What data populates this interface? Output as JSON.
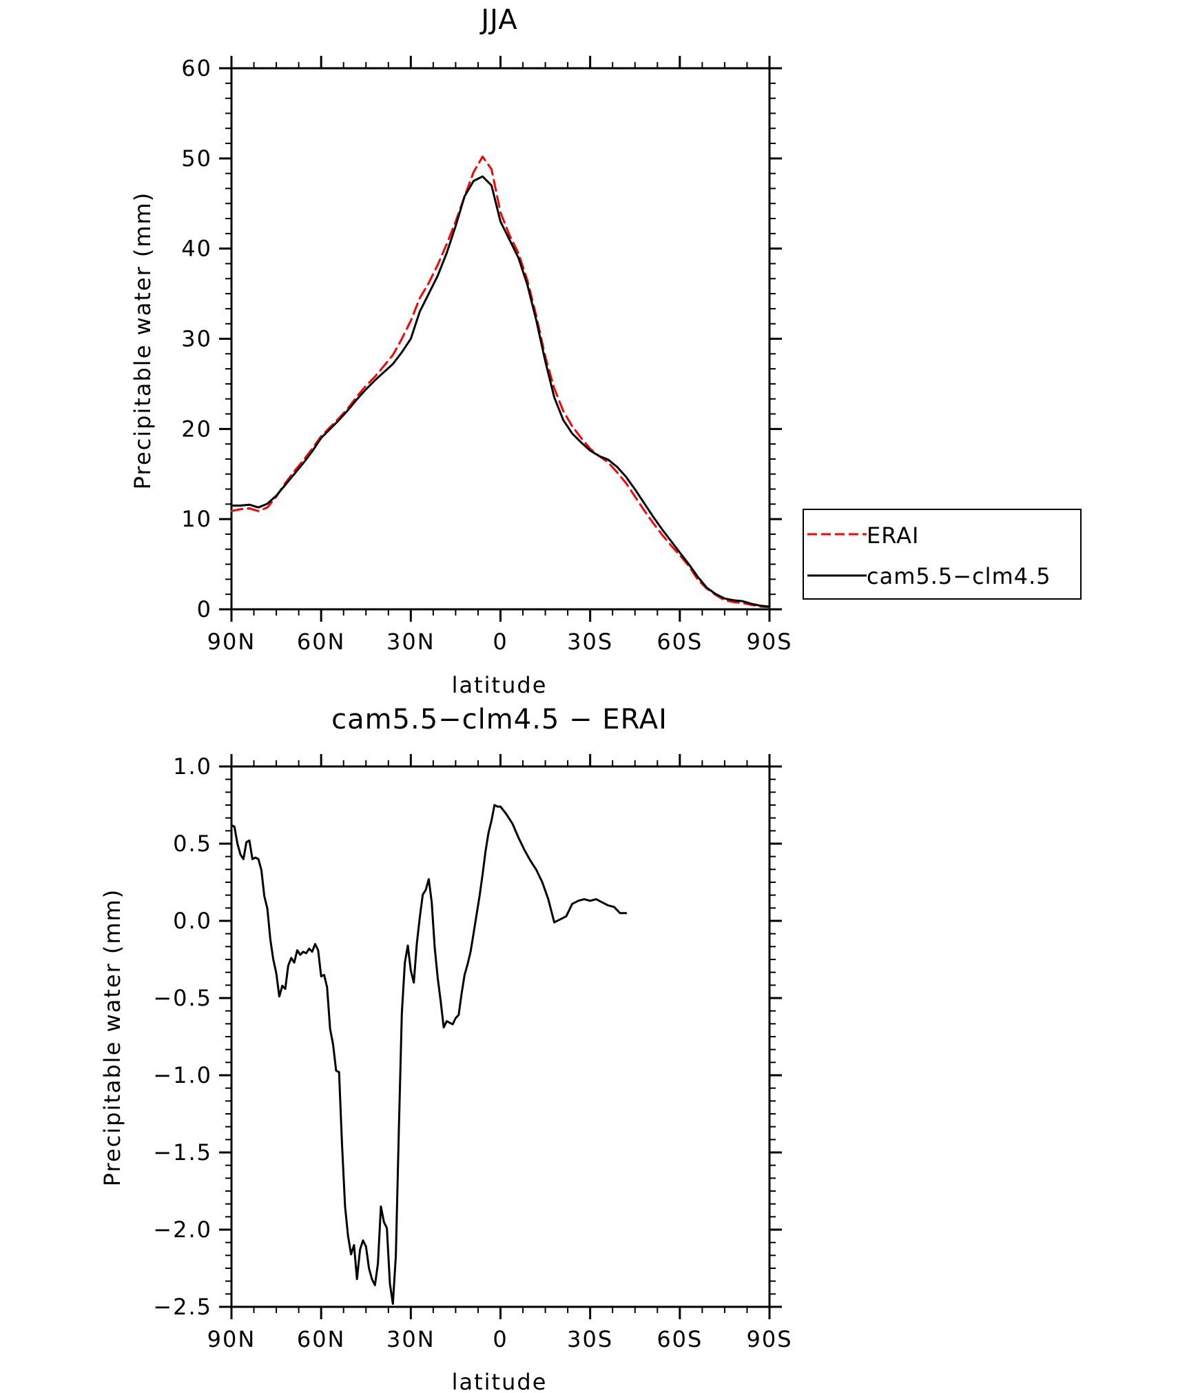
{
  "chart_data": [
    {
      "type": "line",
      "title": "JJA",
      "xlabel": "latitude",
      "ylabel": "Precipitable water (mm)",
      "xlim": [
        90,
        -90
      ],
      "ylim": [
        0,
        60
      ],
      "xticks": [
        {
          "v": 90,
          "label": "90N"
        },
        {
          "v": 60,
          "label": "60N"
        },
        {
          "v": 30,
          "label": "30N"
        },
        {
          "v": 0,
          "label": "0"
        },
        {
          "v": -30,
          "label": "30S"
        },
        {
          "v": -60,
          "label": "60S"
        },
        {
          "v": -90,
          "label": "90S"
        }
      ],
      "yticks": [
        {
          "v": 0,
          "label": "0"
        },
        {
          "v": 10,
          "label": "10"
        },
        {
          "v": 20,
          "label": "20"
        },
        {
          "v": 30,
          "label": "30"
        },
        {
          "v": 40,
          "label": "40"
        },
        {
          "v": 50,
          "label": "50"
        },
        {
          "v": 60,
          "label": "60"
        }
      ],
      "grid": false,
      "legend_position": "outside-right",
      "series": [
        {
          "name": "ERAI",
          "color": "#ff0000",
          "dash": "dashed",
          "points": [
            [
              90,
              10.9
            ],
            [
              87,
              11.1
            ],
            [
              84,
              11.2
            ],
            [
              81,
              10.9
            ],
            [
              78,
              11.3
            ],
            [
              75,
              12.5
            ],
            [
              72,
              14.0
            ],
            [
              69,
              15.3
            ],
            [
              66,
              16.5
            ],
            [
              63,
              17.8
            ],
            [
              60,
              19.2
            ],
            [
              57,
              20.2
            ],
            [
              54,
              21.2
            ],
            [
              51,
              22.3
            ],
            [
              48,
              23.6
            ],
            [
              45,
              24.8
            ],
            [
              42,
              25.8
            ],
            [
              39,
              27.0
            ],
            [
              36,
              28.2
            ],
            [
              33,
              30.0
            ],
            [
              30,
              32.0
            ],
            [
              27,
              34.5
            ],
            [
              24,
              36.2
            ],
            [
              21,
              38.2
            ],
            [
              18,
              40.5
            ],
            [
              15,
              43.0
            ],
            [
              12,
              45.8
            ],
            [
              9,
              48.5
            ],
            [
              6,
              50.2
            ],
            [
              3,
              48.8
            ],
            [
              0,
              44.0
            ],
            [
              -3,
              41.5
            ],
            [
              -6,
              39.5
            ],
            [
              -9,
              36.5
            ],
            [
              -12,
              32.5
            ],
            [
              -15,
              28.0
            ],
            [
              -18,
              24.5
            ],
            [
              -21,
              22.0
            ],
            [
              -24,
              20.3
            ],
            [
              -27,
              19.0
            ],
            [
              -30,
              17.8
            ],
            [
              -33,
              17.0
            ],
            [
              -36,
              16.3
            ],
            [
              -39,
              15.2
            ],
            [
              -42,
              14.0
            ],
            [
              -45,
              12.5
            ],
            [
              -48,
              11.0
            ],
            [
              -51,
              9.6
            ],
            [
              -54,
              8.3
            ],
            [
              -57,
              7.1
            ],
            [
              -60,
              6.0
            ],
            [
              -63,
              4.8
            ],
            [
              -66,
              3.3
            ],
            [
              -69,
              2.3
            ],
            [
              -72,
              1.6
            ],
            [
              -75,
              1.0
            ],
            [
              -78,
              0.8
            ],
            [
              -81,
              0.7
            ],
            [
              -84,
              0.5
            ],
            [
              -87,
              0.3
            ],
            [
              -90,
              0.25
            ]
          ]
        },
        {
          "name": "cam5.5−clm4.5",
          "color": "#000000",
          "dash": "solid",
          "points": [
            [
              90,
              11.5
            ],
            [
              87,
              11.5
            ],
            [
              84,
              11.6
            ],
            [
              81,
              11.3
            ],
            [
              78,
              11.7
            ],
            [
              75,
              12.6
            ],
            [
              72,
              13.8
            ],
            [
              69,
              15.0
            ],
            [
              66,
              16.2
            ],
            [
              63,
              17.5
            ],
            [
              60,
              19.0
            ],
            [
              57,
              20.0
            ],
            [
              54,
              21.0
            ],
            [
              51,
              22.1
            ],
            [
              48,
              23.3
            ],
            [
              45,
              24.4
            ],
            [
              42,
              25.4
            ],
            [
              39,
              26.3
            ],
            [
              36,
              27.2
            ],
            [
              33,
              28.5
            ],
            [
              30,
              30.0
            ],
            [
              27,
              33.0
            ],
            [
              24,
              35.0
            ],
            [
              21,
              37.0
            ],
            [
              18,
              39.5
            ],
            [
              15,
              42.5
            ],
            [
              12,
              45.8
            ],
            [
              9,
              47.5
            ],
            [
              6,
              48.0
            ],
            [
              3,
              47.0
            ],
            [
              0,
              43.0
            ],
            [
              -3,
              41.0
            ],
            [
              -6,
              39.0
            ],
            [
              -9,
              36.0
            ],
            [
              -12,
              32.0
            ],
            [
              -15,
              27.5
            ],
            [
              -18,
              23.5
            ],
            [
              -21,
              21.0
            ],
            [
              -24,
              19.5
            ],
            [
              -27,
              18.5
            ],
            [
              -30,
              17.6
            ],
            [
              -33,
              17.0
            ],
            [
              -36,
              16.6
            ],
            [
              -39,
              15.8
            ],
            [
              -42,
              14.7
            ],
            [
              -45,
              13.3
            ],
            [
              -48,
              11.8
            ],
            [
              -51,
              10.3
            ],
            [
              -54,
              8.9
            ],
            [
              -57,
              7.6
            ],
            [
              -60,
              6.3
            ],
            [
              -63,
              5.0
            ],
            [
              -66,
              3.6
            ],
            [
              -69,
              2.4
            ],
            [
              -72,
              1.7
            ],
            [
              -75,
              1.2
            ],
            [
              -78,
              1.0
            ],
            [
              -81,
              0.9
            ],
            [
              -84,
              0.6
            ],
            [
              -87,
              0.4
            ],
            [
              -90,
              0.3
            ]
          ]
        }
      ]
    },
    {
      "type": "line",
      "title": "cam5.5−clm4.5 − ERAI",
      "xlabel": "latitude",
      "ylabel": "Precipitable water (mm)",
      "xlim": [
        90,
        -90
      ],
      "ylim": [
        -2.5,
        1.0
      ],
      "xticks": [
        {
          "v": 90,
          "label": "90N"
        },
        {
          "v": 60,
          "label": "60N"
        },
        {
          "v": 30,
          "label": "30N"
        },
        {
          "v": 0,
          "label": "0"
        },
        {
          "v": -30,
          "label": "30S"
        },
        {
          "v": -60,
          "label": "60S"
        },
        {
          "v": -90,
          "label": "90S"
        }
      ],
      "yticks": [
        {
          "v": -2.5,
          "label": "−2.5"
        },
        {
          "v": -2.0,
          "label": "−2.0"
        },
        {
          "v": -1.5,
          "label": "−1.5"
        },
        {
          "v": -1.0,
          "label": "−1.0"
        },
        {
          "v": -0.5,
          "label": "−0.5"
        },
        {
          "v": 0.0,
          "label": "0.0"
        },
        {
          "v": 0.5,
          "label": "0.5"
        },
        {
          "v": 1.0,
          "label": "1.0"
        }
      ],
      "grid": false,
      "series": [
        {
          "color": "#000000",
          "dash": "solid",
          "points": [
            [
              90,
              0.62
            ],
            [
              89,
              0.61
            ],
            [
              88,
              0.5
            ],
            [
              87,
              0.43
            ],
            [
              86,
              0.4
            ],
            [
              85,
              0.51
            ],
            [
              84,
              0.52
            ],
            [
              83,
              0.4
            ],
            [
              82,
              0.41
            ],
            [
              81,
              0.4
            ],
            [
              80,
              0.33
            ],
            [
              79,
              0.16
            ],
            [
              78,
              0.08
            ],
            [
              77,
              -0.12
            ],
            [
              76,
              -0.25
            ],
            [
              75,
              -0.34
            ],
            [
              74,
              -0.49
            ],
            [
              73,
              -0.42
            ],
            [
              72,
              -0.44
            ],
            [
              71,
              -0.29
            ],
            [
              70,
              -0.24
            ],
            [
              69,
              -0.27
            ],
            [
              68,
              -0.19
            ],
            [
              67,
              -0.22
            ],
            [
              66,
              -0.2
            ],
            [
              65,
              -0.21
            ],
            [
              64,
              -0.18
            ],
            [
              63,
              -0.2
            ],
            [
              62,
              -0.15
            ],
            [
              61,
              -0.19
            ],
            [
              60,
              -0.36
            ],
            [
              59,
              -0.35
            ],
            [
              58,
              -0.43
            ],
            [
              57,
              -0.7
            ],
            [
              56,
              -0.8
            ],
            [
              55,
              -0.97
            ],
            [
              54,
              -0.98
            ],
            [
              53,
              -1.45
            ],
            [
              52,
              -1.85
            ],
            [
              51,
              -2.04
            ],
            [
              50,
              -2.16
            ],
            [
              49,
              -2.1
            ],
            [
              48,
              -2.32
            ],
            [
              47,
              -2.13
            ],
            [
              46,
              -2.07
            ],
            [
              45,
              -2.11
            ],
            [
              44,
              -2.25
            ],
            [
              43,
              -2.32
            ],
            [
              42,
              -2.36
            ],
            [
              41,
              -2.22
            ],
            [
              40,
              -1.85
            ],
            [
              39,
              -1.95
            ],
            [
              38,
              -1.99
            ],
            [
              37,
              -2.35
            ],
            [
              36,
              -2.48
            ],
            [
              35,
              -2.17
            ],
            [
              34,
              -1.35
            ],
            [
              33,
              -0.6
            ],
            [
              32,
              -0.27
            ],
            [
              31,
              -0.16
            ],
            [
              30,
              -0.32
            ],
            [
              29,
              -0.4
            ],
            [
              28,
              -0.15
            ],
            [
              27,
              0.02
            ],
            [
              26,
              0.17
            ],
            [
              25,
              0.2
            ],
            [
              24,
              0.27
            ],
            [
              23,
              0.12
            ],
            [
              22,
              -0.17
            ],
            [
              21,
              -0.37
            ],
            [
              20,
              -0.52
            ],
            [
              19,
              -0.69
            ],
            [
              18,
              -0.65
            ],
            [
              17,
              -0.66
            ],
            [
              16,
              -0.67
            ],
            [
              15,
              -0.63
            ],
            [
              14,
              -0.61
            ],
            [
              13,
              -0.47
            ],
            [
              12,
              -0.35
            ],
            [
              11,
              -0.28
            ],
            [
              10,
              -0.2
            ],
            [
              9,
              -0.08
            ],
            [
              8,
              0.04
            ],
            [
              7,
              0.16
            ],
            [
              6,
              0.3
            ],
            [
              5,
              0.45
            ],
            [
              4,
              0.57
            ],
            [
              3,
              0.65
            ],
            [
              2,
              0.75
            ],
            [
              1,
              0.74
            ],
            [
              0,
              0.74
            ],
            [
              -2,
              0.69
            ],
            [
              -4,
              0.63
            ],
            [
              -6,
              0.54
            ],
            [
              -8,
              0.46
            ],
            [
              -10,
              0.39
            ],
            [
              -12,
              0.33
            ],
            [
              -14,
              0.25
            ],
            [
              -16,
              0.14
            ],
            [
              -18,
              -0.01
            ],
            [
              -20,
              0.01
            ],
            [
              -22,
              0.03
            ],
            [
              -24,
              0.11
            ],
            [
              -26,
              0.13
            ],
            [
              -28,
              0.14
            ],
            [
              -30,
              0.13
            ],
            [
              -32,
              0.14
            ],
            [
              -34,
              0.12
            ],
            [
              -36,
              0.1
            ],
            [
              -38,
              0.09
            ],
            [
              -40,
              0.05
            ],
            [
              -42,
              0.05
            ]
          ]
        }
      ]
    }
  ]
}
